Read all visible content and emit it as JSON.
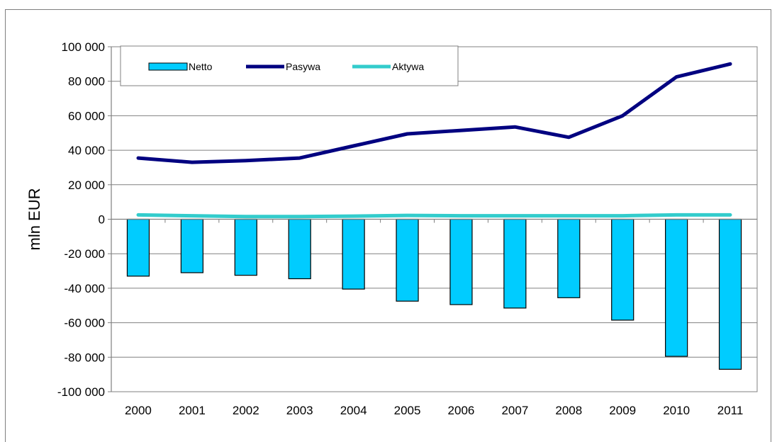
{
  "chart_data": {
    "type": "bar",
    "categories": [
      "2000",
      "2001",
      "2002",
      "2003",
      "2004",
      "2005",
      "2006",
      "2007",
      "2008",
      "2009",
      "2010",
      "2011"
    ],
    "series": [
      {
        "name": "Netto",
        "type": "bar",
        "color": "#00ccff",
        "values": [
          -33000,
          -31000,
          -32500,
          -34500,
          -40500,
          -47500,
          -49500,
          -51500,
          -45500,
          -58500,
          -79500,
          -87000
        ]
      },
      {
        "name": "Pasywa",
        "type": "line",
        "color": "#000080",
        "values": [
          35500,
          33000,
          34000,
          35500,
          42500,
          49500,
          51500,
          53500,
          47500,
          60000,
          82500,
          90000
        ]
      },
      {
        "name": "Aktywa",
        "type": "line",
        "color": "#33cccc",
        "values": [
          2500,
          2000,
          1500,
          1500,
          1800,
          2200,
          2000,
          2000,
          2000,
          2000,
          2500,
          2500
        ]
      }
    ],
    "ylim": [
      -100000,
      100000
    ],
    "yticks": [
      -100000,
      -80000,
      -60000,
      -40000,
      -20000,
      0,
      20000,
      40000,
      60000,
      80000,
      100000
    ],
    "ytick_labels": [
      "-100 000",
      "-80 000",
      "-60 000",
      "-40 000",
      "-20 000",
      "0",
      "20 000",
      "40 000",
      "60 000",
      "80 000",
      "100 000"
    ],
    "ylabel": "mln EUR",
    "xlabel": "",
    "title": "",
    "grid": true,
    "legend_position": "top-left"
  }
}
